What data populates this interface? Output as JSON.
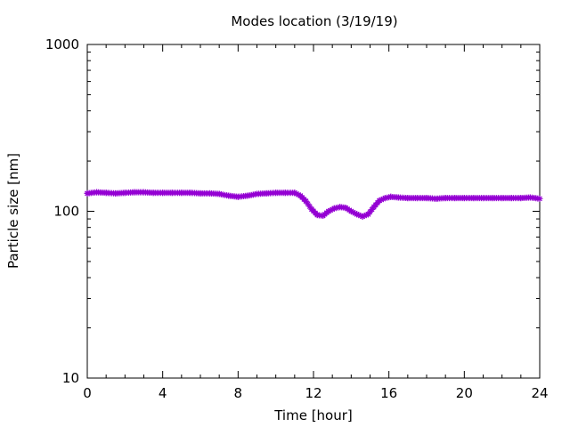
{
  "chart_data": {
    "type": "line",
    "title": "Modes location (3/19/19)",
    "xlabel": "Time [hour]",
    "ylabel": "Particle size [nm]",
    "xlim": [
      0,
      24
    ],
    "ylim": [
      10,
      1000
    ],
    "yscale": "log",
    "xticks": [
      0,
      4,
      8,
      12,
      16,
      20,
      24
    ],
    "xtick_labels": [
      "0",
      "4",
      "8",
      "12",
      "16",
      "20",
      "24"
    ],
    "yticks": [
      10,
      100,
      1000
    ],
    "ytick_labels": [
      "10",
      "100",
      "1000"
    ],
    "grid": false,
    "legend": "none",
    "series": [
      {
        "color": "#9400d3",
        "marker": "star",
        "x": [
          0,
          0.5,
          1,
          1.5,
          2,
          2.5,
          3,
          3.5,
          4,
          4.5,
          5,
          5.5,
          6,
          6.5,
          7,
          7.5,
          8,
          8.5,
          9,
          9.5,
          10,
          10.5,
          11,
          11.3,
          11.6,
          11.9,
          12.2,
          12.5,
          12.8,
          13.1,
          13.4,
          13.7,
          14.0,
          14.3,
          14.6,
          14.9,
          15.2,
          15.5,
          15.8,
          16.1,
          16.5,
          17,
          17.5,
          18,
          18.5,
          19,
          19.5,
          20,
          20.5,
          21,
          21.5,
          22,
          22.5,
          23,
          23.5,
          24
        ],
        "y": [
          128,
          130,
          129,
          128,
          129,
          130,
          130,
          129,
          129,
          129,
          129,
          129,
          128,
          128,
          127,
          124,
          122,
          124,
          127,
          128,
          129,
          129,
          129,
          124,
          115,
          103,
          95,
          94,
          100,
          104,
          106,
          105,
          100,
          96,
          93,
          96,
          106,
          116,
          120,
          122,
          121,
          120,
          120,
          120,
          119,
          120,
          120,
          120,
          120,
          120,
          120,
          120,
          120,
          120,
          121,
          119
        ]
      }
    ]
  }
}
